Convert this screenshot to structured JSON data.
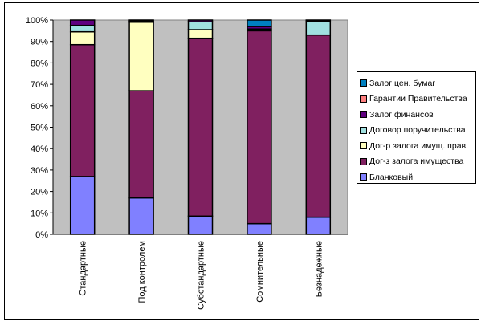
{
  "chart_data": {
    "type": "bar",
    "stacked": "percent",
    "title": "",
    "xlabel": "",
    "ylabel": "",
    "ylim": [
      0,
      100
    ],
    "yticks": [
      "0%",
      "10%",
      "20%",
      "30%",
      "40%",
      "50%",
      "60%",
      "70%",
      "80%",
      "90%",
      "100%"
    ],
    "categories": [
      "Стандартные",
      "Под контролем",
      "Субстандартные",
      "Сомнительные",
      "Безнадежные"
    ],
    "legend_position": "right",
    "grid": false,
    "series": [
      {
        "name": "Бланковый",
        "color": "#8080FF",
        "values": [
          27,
          17,
          8.5,
          5,
          8
        ]
      },
      {
        "name": "Дог-з залога имущества",
        "color": "#802060",
        "values": [
          61.5,
          50,
          83,
          90,
          85
        ]
      },
      {
        "name": "Дог-р залога имущ. прав.",
        "color": "#FFFFC0",
        "values": [
          6,
          32,
          4,
          0,
          0
        ]
      },
      {
        "name": "Договор поручительства",
        "color": "#A0E0E0",
        "values": [
          3,
          0.5,
          3.7,
          0.8,
          6.5
        ]
      },
      {
        "name": "Залог финансов",
        "color": "#600080",
        "values": [
          2.5,
          0.5,
          0.8,
          1.2,
          0.5
        ]
      },
      {
        "name": "Гарантии Правительства",
        "color": "#FF8080",
        "values": [
          0,
          0,
          0,
          0,
          0
        ]
      },
      {
        "name": "Залог цен. бумаг",
        "color": "#0080C0",
        "values": [
          0,
          0,
          0,
          3,
          0
        ]
      }
    ]
  }
}
